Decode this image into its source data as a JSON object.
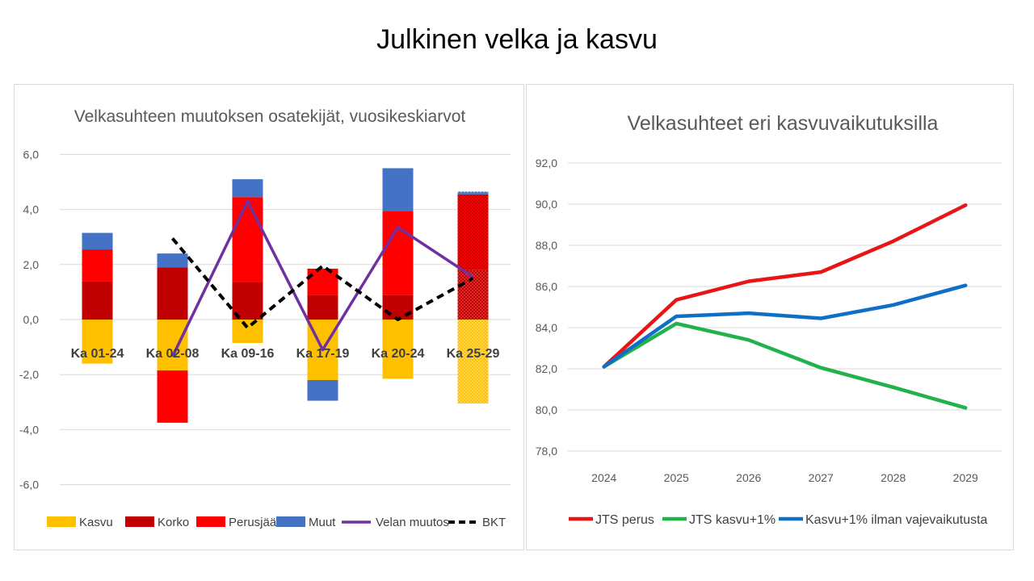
{
  "slide_title": "Julkinen velka ja kasvu",
  "colors": {
    "kasvu": "#FFC000",
    "korko": "#C00000",
    "perusjaama": "#FF0000",
    "muut": "#4472C4",
    "velan_muutos": "#7030A0",
    "bkt": "#000000",
    "jts_perus": "#E81416",
    "jts_kasvu": "#22B24C",
    "kasvu_ilman": "#0F6FC6"
  },
  "chart_data": [
    {
      "type": "bar",
      "stacked": true,
      "title": "Velkasuhteen muutoksen osatekijät, vuosikeskiarvot",
      "categories": [
        "Ka 01-24",
        "Ka 02-08",
        "Ka 09-16",
        "Ka 17-19",
        "Ka 20-24",
        "Ka 25-29"
      ],
      "ylim": [
        -6,
        6
      ],
      "yticks": [
        "6,0",
        "4,0",
        "2,0",
        "0,0",
        "-2,0",
        "-4,0",
        "-6,0"
      ],
      "grid": true,
      "legend": "bottom",
      "forecast_category": "Ka 25-29",
      "series": [
        {
          "name": "Kasvu",
          "kind": "bar",
          "values": [
            -1.6,
            -1.85,
            -0.85,
            -2.2,
            -2.15,
            -3.05
          ]
        },
        {
          "name": "Korko",
          "kind": "bar",
          "values": [
            1.38,
            1.9,
            1.35,
            0.9,
            0.9,
            1.8
          ]
        },
        {
          "name": "Perusjäämä",
          "kind": "bar",
          "values": [
            1.17,
            -1.9,
            3.1,
            0.95,
            3.05,
            2.75
          ]
        },
        {
          "name": "Muut",
          "kind": "bar",
          "values": [
            0.6,
            0.5,
            0.65,
            -0.75,
            1.55,
            0.1
          ]
        },
        {
          "name": "Velan muutos",
          "kind": "line",
          "values": [
            null,
            -1.35,
            4.3,
            -1.1,
            3.35,
            1.55
          ]
        },
        {
          "name": "BKT",
          "kind": "dashed-line",
          "values": [
            null,
            2.95,
            -0.3,
            1.95,
            0.0,
            1.5
          ]
        }
      ]
    },
    {
      "type": "line",
      "title": "Velkasuhteet eri kasvuvaikutuksilla",
      "x": [
        "2024",
        "2025",
        "2026",
        "2027",
        "2028",
        "2029"
      ],
      "ylim": [
        78,
        92
      ],
      "yticks": [
        "92,0",
        "90,0",
        "88,0",
        "86,0",
        "84,0",
        "82,0",
        "80,0",
        "78,0"
      ],
      "grid": true,
      "legend": "bottom",
      "series": [
        {
          "name": "JTS perus",
          "values": [
            82.1,
            85.35,
            86.25,
            86.7,
            88.2,
            89.95
          ]
        },
        {
          "name": "JTS kasvu+1%",
          "values": [
            82.1,
            84.2,
            83.4,
            82.05,
            81.1,
            80.1
          ]
        },
        {
          "name": "Kasvu+1% ilman vajevaikutusta",
          "values": [
            82.1,
            84.55,
            84.7,
            84.45,
            85.1,
            86.05
          ]
        }
      ]
    }
  ]
}
